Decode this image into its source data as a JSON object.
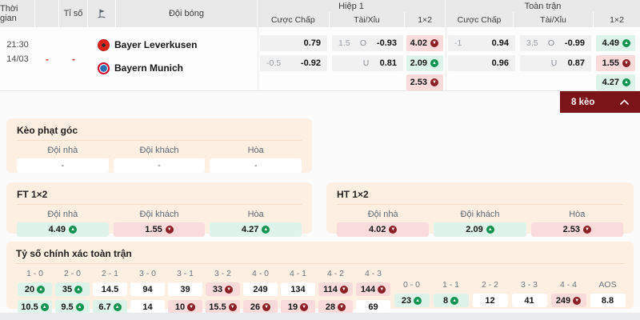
{
  "table": {
    "headers": {
      "time": "Thời gian",
      "score": "Tỉ số",
      "team": "Đội bóng",
      "half1": "Hiệp 1",
      "fulltime": "Toàn trận",
      "handicap": "Cược Chấp",
      "overunder": "Tài/Xỉu",
      "onextwo": "1×2"
    },
    "match": {
      "time": "21:30",
      "date": "14/03",
      "score1": "-",
      "score2": "-",
      "home": "Bayer Leverkusen",
      "away": "Bayern Munich"
    },
    "h1": {
      "hdp": [
        {
          "line": "",
          "odds": "0.79"
        },
        {
          "line": "-0.5",
          "odds": "-0.92"
        }
      ],
      "ou": [
        {
          "line": "1.5",
          "side": "O",
          "odds": "-0.93"
        },
        {
          "line": "",
          "side": "U",
          "odds": "0.81"
        }
      ],
      "x12": [
        {
          "odds": "4.02",
          "trend": "down"
        },
        {
          "odds": "2.09",
          "trend": "up"
        },
        {
          "odds": "2.53",
          "trend": "down"
        }
      ]
    },
    "ft": {
      "hdp": [
        {
          "line": "-1",
          "odds": "0.94"
        },
        {
          "line": "",
          "odds": "0.96"
        }
      ],
      "ou": [
        {
          "line": "3.5",
          "side": "O",
          "odds": "-0.99"
        },
        {
          "line": "",
          "side": "U",
          "odds": "0.87"
        }
      ],
      "x12": [
        {
          "odds": "4.49",
          "trend": "up"
        },
        {
          "odds": "1.55",
          "trend": "down"
        },
        {
          "odds": "4.27",
          "trend": "up"
        }
      ]
    }
  },
  "banner": {
    "label": "8 kèo",
    "icon": "chevron-up-icon"
  },
  "team_columns": {
    "home": "Đội nhà",
    "away": "Đội khách",
    "draw": "Hòa"
  },
  "corner": {
    "title": "Kèo phạt góc",
    "values": [
      "-",
      "-",
      "-"
    ]
  },
  "ft1x2": {
    "title": "FT 1×2",
    "values": [
      {
        "odds": "4.49",
        "trend": "up"
      },
      {
        "odds": "1.55",
        "trend": "down"
      },
      {
        "odds": "4.27",
        "trend": "up"
      }
    ]
  },
  "ht1x2": {
    "title": "HT 1×2",
    "values": [
      {
        "odds": "4.02",
        "trend": "down"
      },
      {
        "odds": "2.09",
        "trend": "up"
      },
      {
        "odds": "2.53",
        "trend": "down"
      }
    ]
  },
  "correct_score": {
    "title": "Tỷ số chính xác toàn trận",
    "scores": [
      {
        "label": "1 - 0",
        "v1": "20",
        "t1": "up",
        "v2": "10.5",
        "t2": "up"
      },
      {
        "label": "2 - 0",
        "v1": "35",
        "t1": "up",
        "v2": "9.5",
        "t2": "up"
      },
      {
        "label": "2 - 1",
        "v1": "14.5",
        "t1": "",
        "v2": "6.7",
        "t2": "up"
      },
      {
        "label": "3 - 0",
        "v1": "94",
        "t1": "",
        "v2": "14",
        "t2": ""
      },
      {
        "label": "3 - 1",
        "v1": "39",
        "t1": "",
        "v2": "10",
        "t2": "down"
      },
      {
        "label": "3 - 2",
        "v1": "33",
        "t1": "down",
        "v2": "15.5",
        "t2": "down"
      },
      {
        "label": "4 - 0",
        "v1": "249",
        "t1": "",
        "v2": "26",
        "t2": "down"
      },
      {
        "label": "4 - 1",
        "v1": "134",
        "t1": "",
        "v2": "19",
        "t2": "down"
      },
      {
        "label": "4 - 2",
        "v1": "114",
        "t1": "down",
        "v2": "28",
        "t2": "down"
      },
      {
        "label": "4 - 3",
        "v1": "144",
        "t1": "down",
        "v2": "69",
        "t2": ""
      }
    ],
    "draws": [
      {
        "label": "0 - 0",
        "v": "23",
        "t": "up"
      },
      {
        "label": "1 - 1",
        "v": "8",
        "t": "up"
      },
      {
        "label": "2 - 2",
        "v": "12",
        "t": ""
      },
      {
        "label": "3 - 3",
        "v": "41",
        "t": ""
      },
      {
        "label": "4 - 4",
        "v": "249",
        "t": "down"
      },
      {
        "label": "AOS",
        "v": "8.8",
        "t": ""
      }
    ]
  },
  "icons": {
    "corner_flag": "flag-icon",
    "collapse": "chevron-up-icon",
    "trend_up": "arrow-up-circle-icon",
    "trend_down": "arrow-down-circle-icon"
  },
  "colors": {
    "banner_red": "#7b1418",
    "header_bg": "#e9e9e9",
    "card_bg": "#fdf0e3",
    "cell_up_bg": "#def3e9",
    "cell_down_bg": "#f9dbdc",
    "trend_up": "#12934f",
    "trend_down": "#8d1f26",
    "score_dash_red": "#d93025"
  }
}
